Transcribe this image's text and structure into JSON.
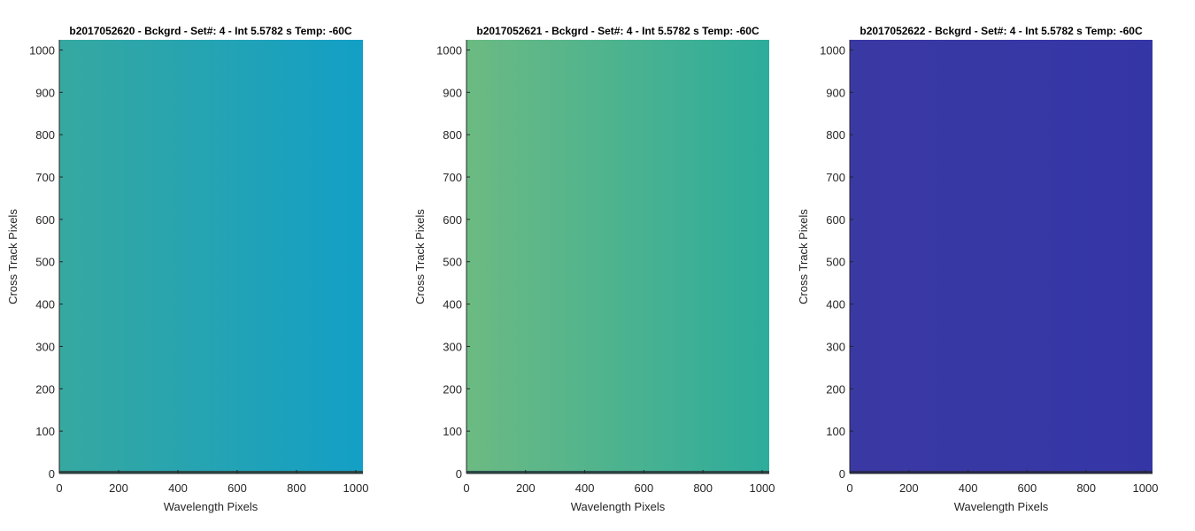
{
  "chart_data": [
    {
      "type": "heatmap",
      "title": "b2017052620 - Bckgrd - Set#: 4 - Int 5.5782 s Temp: -60C",
      "xlabel": "Wavelength Pixels",
      "ylabel": "Cross Track Pixels",
      "xlim": [
        0,
        1024
      ],
      "ylim": [
        0,
        1024
      ],
      "xticks": [
        0,
        200,
        400,
        600,
        800,
        1000
      ],
      "yticks": [
        0,
        100,
        200,
        300,
        400,
        500,
        600,
        700,
        800,
        900,
        1000
      ],
      "colors": {
        "left": "#36a8a0",
        "right": "#139fc6",
        "bottom_row": "#2b4a4a"
      }
    },
    {
      "type": "heatmap",
      "title": "b2017052621 - Bckgrd - Set#: 4 - Int 5.5782 s Temp: -60C",
      "xlabel": "Wavelength Pixels",
      "ylabel": "Cross Track Pixels",
      "xlim": [
        0,
        1024
      ],
      "ylim": [
        0,
        1024
      ],
      "xticks": [
        0,
        200,
        400,
        600,
        800,
        1000
      ],
      "yticks": [
        0,
        100,
        200,
        300,
        400,
        500,
        600,
        700,
        800,
        900,
        1000
      ],
      "colors": {
        "left": "#6cba82",
        "right": "#2dac9c",
        "bottom_row": "#2b4a4a"
      }
    },
    {
      "type": "heatmap",
      "title": "b2017052622 - Bckgrd - Set#: 4 - Int 5.5782 s Temp: -60C",
      "xlabel": "Wavelength Pixels",
      "ylabel": "Cross Track Pixels",
      "xlim": [
        0,
        1024
      ],
      "ylim": [
        0,
        1024
      ],
      "xticks": [
        0,
        200,
        400,
        600,
        800,
        1000
      ],
      "yticks": [
        0,
        100,
        200,
        300,
        400,
        500,
        600,
        700,
        800,
        900,
        1000
      ],
      "colors": {
        "left": "#3a39a4",
        "right": "#3536a6",
        "bottom_row": "#2a2a55"
      }
    }
  ]
}
